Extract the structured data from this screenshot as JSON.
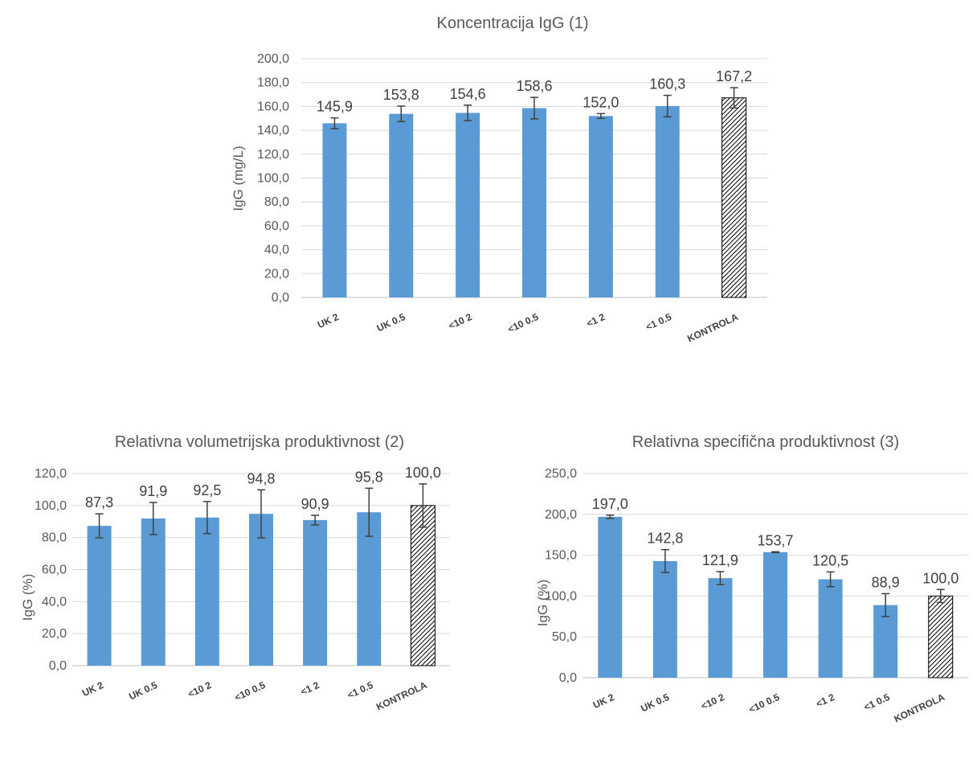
{
  "colors": {
    "bar": "#5b9bd5",
    "grid": "#d9d9d9",
    "error": "#404040",
    "control_outline": "#000000"
  },
  "chart_data": [
    {
      "type": "bar",
      "title": "Koncentracija IgG (1)",
      "xlabel": "",
      "ylabel": "IgG (mg/L)",
      "ylim": [
        0,
        200
      ],
      "ytick_step": 20,
      "ytick_labels": [
        "0,0",
        "20,0",
        "40,0",
        "60,0",
        "80,0",
        "100,0",
        "120,0",
        "140,0",
        "160,0",
        "180,0",
        "200,0"
      ],
      "grid": true,
      "legend": "none",
      "categories": [
        "UK 2",
        "UK 0.5",
        "<10 2",
        "<10 0.5",
        "<1 2",
        "<1 0.5",
        "KONTROLA"
      ],
      "values": [
        145.9,
        153.8,
        154.6,
        158.6,
        152.0,
        160.3,
        167.2
      ],
      "errors": [
        4.5,
        6.5,
        6.5,
        9.0,
        2.0,
        9.0,
        8.5
      ],
      "data_labels": [
        "145,9",
        "153,8",
        "154,6",
        "158,6",
        "152,0",
        "160,3",
        "167,2"
      ],
      "hatched_category": "KONTROLA"
    },
    {
      "type": "bar",
      "title": "Relativna volumetrijska produktivnost (2)",
      "xlabel": "",
      "ylabel": "IgG (%)",
      "ylim": [
        0,
        120
      ],
      "ytick_step": 20,
      "ytick_labels": [
        "0,0",
        "20,0",
        "40,0",
        "60,0",
        "80,0",
        "100,0",
        "120,0"
      ],
      "grid": true,
      "legend": "none",
      "categories": [
        "UK 2",
        "UK 0.5",
        "<10 2",
        "<10 0.5",
        "<1 2",
        "<1 0.5",
        "KONTROLA"
      ],
      "values": [
        87.3,
        91.9,
        92.5,
        94.8,
        90.9,
        95.8,
        100.0
      ],
      "errors": [
        7.5,
        10.0,
        10.0,
        15.0,
        3.0,
        15.0,
        13.5
      ],
      "data_labels": [
        "87,3",
        "91,9",
        "92,5",
        "94,8",
        "90,9",
        "95,8",
        "100,0"
      ],
      "hatched_category": "KONTROLA"
    },
    {
      "type": "bar",
      "title": "Relativna specifična produktivnost (3)",
      "xlabel": "",
      "ylabel": "IgG (%)",
      "ylim": [
        0,
        250
      ],
      "ytick_step": 50,
      "ytick_labels": [
        "0,0",
        "50,0",
        "100,0",
        "150,0",
        "200,0",
        "250,0"
      ],
      "grid": true,
      "legend": "none",
      "categories": [
        "UK 2",
        "UK 0.5",
        "<10 2",
        "<10 0.5",
        "<1 2",
        "<1 0.5",
        "KONTROLA"
      ],
      "values": [
        197.0,
        142.8,
        121.9,
        153.7,
        120.5,
        88.9,
        100.0
      ],
      "errors": [
        2.0,
        14.0,
        8.0,
        0.5,
        9.0,
        14.0,
        8.0
      ],
      "data_labels": [
        "197,0",
        "142,8",
        "121,9",
        "153,7",
        "120,5",
        "88,9",
        "100,0"
      ],
      "hatched_category": "KONTROLA"
    }
  ]
}
